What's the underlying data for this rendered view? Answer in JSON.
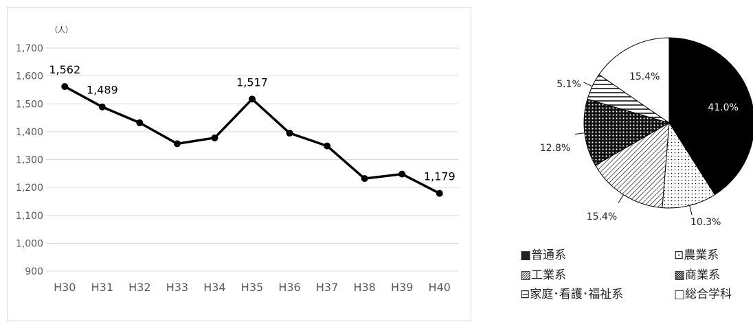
{
  "chart_data": [
    {
      "type": "line",
      "unit": "（人）",
      "categories": [
        "H30",
        "H31",
        "H32",
        "H33",
        "H34",
        "H35",
        "H36",
        "H37",
        "H38",
        "H39",
        "H40"
      ],
      "series": [
        {
          "values": [
            1562,
            1489,
            1432,
            1357,
            1378,
            1517,
            1395,
            1349,
            1232,
            1248,
            1179
          ]
        }
      ],
      "labeled_values": [
        "1,562",
        "1,489",
        "1,517",
        "1,179"
      ],
      "labeled_indices": [
        0,
        1,
        5,
        10
      ],
      "yticks": [
        "900",
        "1,000",
        "1,100",
        "1,200",
        "1,300",
        "1,400",
        "1,500",
        "1,600",
        "1,700"
      ],
      "ylim": [
        900,
        1700
      ],
      "grid": true,
      "line_color": "#000000"
    },
    {
      "type": "pie",
      "labels": [
        "普通系",
        "農業系",
        "工業系",
        "商業系",
        "家庭･看護･福祉系",
        "総合学科"
      ],
      "values": [
        41.0,
        10.3,
        15.4,
        12.8,
        5.1,
        15.4
      ],
      "value_labels": [
        "41.0%",
        "10.3%",
        "15.4%",
        "12.8%",
        "5.1%",
        "15.4%"
      ],
      "legend": {
        "position": "bottom",
        "items": [
          "■普通系",
          "⊡農業系",
          "▨工業系",
          "▩商業系",
          "⊟家庭･看護･福祉系",
          "□総合学科"
        ]
      }
    }
  ]
}
